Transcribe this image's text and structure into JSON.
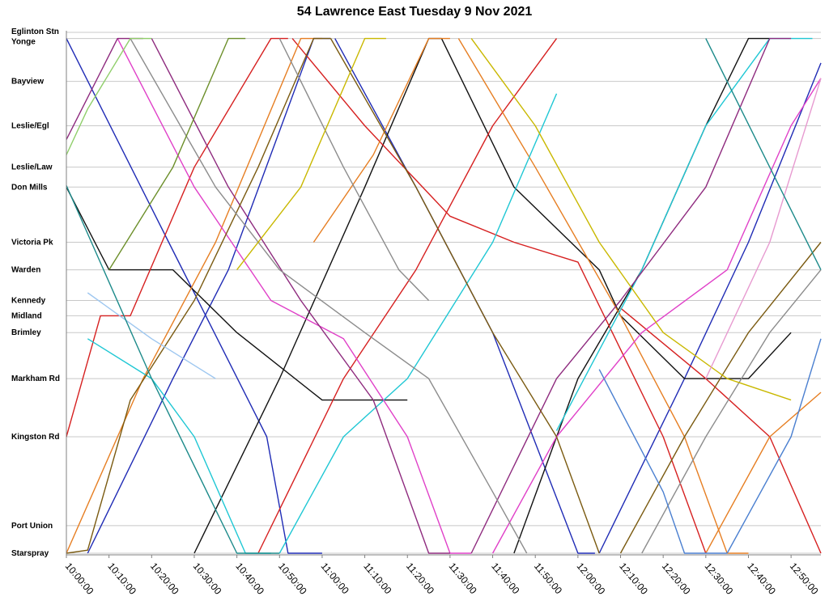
{
  "chart_data": {
    "type": "line",
    "title": "54 Lawrence East Tuesday 9 Nov 2021",
    "xlabel": "",
    "ylabel": "",
    "x_type": "time",
    "xlim": [
      "10:00:00",
      "12:57:00"
    ],
    "x_ticks": [
      "10:00:00",
      "10:10:00",
      "10:20:00",
      "10:30:00",
      "10:40:00",
      "10:50:00",
      "11:00:00",
      "11:10:00",
      "11:20:00",
      "11:30:00",
      "11:40:00",
      "11:50:00",
      "12:00:00",
      "12:10:00",
      "12:20:00",
      "12:30:00",
      "12:40:00",
      "12:50:00"
    ],
    "stops": [
      {
        "name": "Eglinton Stn",
        "position": 0
      },
      {
        "name": "Yonge",
        "position": 0.4
      },
      {
        "name": "Bayview",
        "position": 3.2
      },
      {
        "name": "Leslie/Egl",
        "position": 6.1
      },
      {
        "name": "Leslie/Law",
        "position": 8.8
      },
      {
        "name": "Don Mills",
        "position": 10.1
      },
      {
        "name": "Victoria Pk",
        "position": 13.7
      },
      {
        "name": "Warden",
        "position": 15.5
      },
      {
        "name": "Kennedy",
        "position": 17.5
      },
      {
        "name": "Midland",
        "position": 18.5
      },
      {
        "name": "Brimley",
        "position": 19.6
      },
      {
        "name": "Markham Rd",
        "position": 22.6
      },
      {
        "name": "Kingston Rd",
        "position": 26.4
      },
      {
        "name": "Port Union",
        "position": 32.2
      },
      {
        "name": "Starspray",
        "position": 34.0
      }
    ],
    "grid": true,
    "legend": "none",
    "series": [
      {
        "color": "#1f2bb5",
        "points": [
          [
            "10:00:00",
            0.4
          ],
          [
            "10:24:00",
            13.7
          ],
          [
            "10:47:00",
            26.4
          ],
          [
            "10:52:00",
            34.0
          ],
          [
            "11:00:00",
            34.0
          ]
        ]
      },
      {
        "color": "#1f2bb5",
        "points": [
          [
            "10:05:00",
            34.0
          ],
          [
            "10:25:00",
            22.6
          ],
          [
            "10:38:00",
            15.5
          ],
          [
            "10:58:00",
            0.4
          ],
          [
            "11:02:00",
            0.4
          ]
        ]
      },
      {
        "color": "#1f2bb5",
        "points": [
          [
            "11:03:00",
            0.4
          ],
          [
            "11:22:00",
            10.1
          ],
          [
            "11:40:00",
            19.6
          ],
          [
            "12:00:00",
            34.0
          ],
          [
            "12:04:00",
            34.0
          ]
        ]
      },
      {
        "color": "#1f2bb5",
        "points": [
          [
            "12:05:00",
            34.0
          ],
          [
            "12:25:00",
            22.6
          ],
          [
            "12:40:00",
            13.7
          ],
          [
            "12:57:00",
            2.0
          ]
        ]
      },
      {
        "color": "#111111",
        "points": [
          [
            "10:00:00",
            10.1
          ],
          [
            "10:10:00",
            15.5
          ],
          [
            "10:25:00",
            15.5
          ],
          [
            "10:40:00",
            19.6
          ],
          [
            "11:00:00",
            24.0
          ],
          [
            "11:20:00",
            24.0
          ]
        ]
      },
      {
        "color": "#111111",
        "points": [
          [
            "10:30:00",
            34.0
          ],
          [
            "10:50:00",
            22.6
          ],
          [
            "11:10:00",
            10.1
          ],
          [
            "11:25:00",
            0.4
          ],
          [
            "11:28:00",
            0.4
          ]
        ]
      },
      {
        "color": "#111111",
        "points": [
          [
            "11:45:00",
            34.0
          ],
          [
            "12:00:00",
            22.6
          ],
          [
            "12:15:00",
            15.5
          ],
          [
            "12:30:00",
            6.1
          ],
          [
            "12:40:00",
            0.4
          ],
          [
            "12:45:00",
            0.4
          ]
        ]
      },
      {
        "color": "#111111",
        "points": [
          [
            "11:28:00",
            0.4
          ],
          [
            "11:45:00",
            10.1
          ],
          [
            "12:05:00",
            15.5
          ],
          [
            "12:10:00",
            18.5
          ],
          [
            "12:25:00",
            22.6
          ],
          [
            "12:40:00",
            22.6
          ],
          [
            "12:50:00",
            19.6
          ]
        ]
      },
      {
        "color": "#d62020",
        "points": [
          [
            "10:00:00",
            26.4
          ],
          [
            "10:08:00",
            18.5
          ],
          [
            "10:15:00",
            18.5
          ],
          [
            "10:30:00",
            8.8
          ],
          [
            "10:48:00",
            0.4
          ],
          [
            "10:52:00",
            0.4
          ]
        ]
      },
      {
        "color": "#d62020",
        "points": [
          [
            "10:53:00",
            0.4
          ],
          [
            "11:10:00",
            6.1
          ],
          [
            "11:30:00",
            12.0
          ],
          [
            "11:45:00",
            13.7
          ],
          [
            "12:00:00",
            15.0
          ],
          [
            "12:20:00",
            26.4
          ],
          [
            "12:30:00",
            34.0
          ]
        ]
      },
      {
        "color": "#d62020",
        "points": [
          [
            "10:45:00",
            34.0
          ],
          [
            "11:05:00",
            22.6
          ],
          [
            "11:22:00",
            15.5
          ],
          [
            "11:40:00",
            6.1
          ],
          [
            "11:55:00",
            0.4
          ]
        ]
      },
      {
        "color": "#d62020",
        "points": [
          [
            "12:10:00",
            18.0
          ],
          [
            "12:30:00",
            22.6
          ],
          [
            "12:45:00",
            26.4
          ],
          [
            "12:57:00",
            34.0
          ]
        ]
      },
      {
        "color": "#e67e22",
        "points": [
          [
            "10:00:00",
            34.0
          ],
          [
            "10:18:00",
            22.6
          ],
          [
            "10:35:00",
            13.7
          ],
          [
            "10:55:00",
            0.4
          ],
          [
            "11:00:00",
            0.4
          ]
        ]
      },
      {
        "color": "#e67e22",
        "points": [
          [
            "10:58:00",
            13.7
          ],
          [
            "11:12:00",
            8.0
          ],
          [
            "11:25:00",
            0.4
          ],
          [
            "11:30:00",
            0.4
          ]
        ]
      },
      {
        "color": "#e67e22",
        "points": [
          [
            "11:32:00",
            0.4
          ],
          [
            "11:50:00",
            8.8
          ],
          [
            "12:10:00",
            18.5
          ],
          [
            "12:25:00",
            26.4
          ],
          [
            "12:35:00",
            34.0
          ],
          [
            "12:40:00",
            34.0
          ]
        ]
      },
      {
        "color": "#e67e22",
        "points": [
          [
            "12:30:00",
            34.0
          ],
          [
            "12:45:00",
            26.4
          ],
          [
            "12:57:00",
            23.5
          ]
        ]
      },
      {
        "color": "#1fc7d4",
        "points": [
          [
            "10:05:00",
            20.0
          ],
          [
            "10:20:00",
            22.6
          ],
          [
            "10:30:00",
            26.4
          ],
          [
            "10:42:00",
            34.0
          ],
          [
            "10:48:00",
            34.0
          ]
        ]
      },
      {
        "color": "#1fc7d4",
        "points": [
          [
            "10:50:00",
            34.0
          ],
          [
            "11:05:00",
            26.4
          ],
          [
            "11:20:00",
            22.6
          ],
          [
            "11:40:00",
            13.7
          ],
          [
            "11:55:00",
            4.0
          ]
        ]
      },
      {
        "color": "#1fc7d4",
        "points": [
          [
            "11:55:00",
            26.0
          ],
          [
            "12:15:00",
            15.5
          ],
          [
            "12:30:00",
            6.1
          ],
          [
            "12:45:00",
            0.4
          ],
          [
            "12:55:00",
            0.4
          ]
        ]
      },
      {
        "color": "#e040c8",
        "points": [
          [
            "10:12:00",
            0.4
          ],
          [
            "10:30:00",
            10.1
          ],
          [
            "10:48:00",
            17.5
          ],
          [
            "11:05:00",
            20.0
          ],
          [
            "11:20:00",
            26.4
          ],
          [
            "11:30:00",
            34.0
          ],
          [
            "11:35:00",
            34.0
          ]
        ]
      },
      {
        "color": "#e040c8",
        "points": [
          [
            "11:40:00",
            34.0
          ],
          [
            "11:55:00",
            26.4
          ],
          [
            "12:15:00",
            19.6
          ],
          [
            "12:35:00",
            15.5
          ],
          [
            "12:50:00",
            6.1
          ],
          [
            "12:57:00",
            3.0
          ]
        ]
      },
      {
        "color": "#8e2a7e",
        "points": [
          [
            "10:00:00",
            7.0
          ],
          [
            "10:12:00",
            0.4
          ],
          [
            "10:18:00",
            0.4
          ]
        ]
      },
      {
        "color": "#8e2a7e",
        "points": [
          [
            "10:20:00",
            0.4
          ],
          [
            "10:38:00",
            10.1
          ],
          [
            "10:55:00",
            17.5
          ],
          [
            "11:12:00",
            24.0
          ],
          [
            "11:25:00",
            34.0
          ],
          [
            "11:30:00",
            34.0
          ]
        ]
      },
      {
        "color": "#8e2a7e",
        "points": [
          [
            "11:35:00",
            34.0
          ],
          [
            "11:55:00",
            22.6
          ],
          [
            "12:10:00",
            17.5
          ],
          [
            "12:30:00",
            10.1
          ],
          [
            "12:45:00",
            0.4
          ],
          [
            "12:50:00",
            0.4
          ]
        ]
      },
      {
        "color": "#7a5a10",
        "points": [
          [
            "10:00:00",
            34.0
          ],
          [
            "10:05:00",
            33.8
          ],
          [
            "10:15:00",
            24.0
          ],
          [
            "10:30:00",
            17.5
          ],
          [
            "10:45:00",
            8.8
          ],
          [
            "10:58:00",
            0.4
          ],
          [
            "11:02:00",
            0.4
          ]
        ]
      },
      {
        "color": "#7a5a10",
        "points": [
          [
            "11:02:00",
            0.4
          ],
          [
            "11:22:00",
            10.1
          ],
          [
            "11:40:00",
            19.6
          ],
          [
            "11:55:00",
            26.4
          ],
          [
            "12:05:00",
            34.0
          ]
        ]
      },
      {
        "color": "#7a5a10",
        "points": [
          [
            "12:10:00",
            34.0
          ],
          [
            "12:25:00",
            26.4
          ],
          [
            "12:40:00",
            19.6
          ],
          [
            "12:57:00",
            13.7
          ]
        ]
      },
      {
        "color": "#8c8c8c",
        "points": [
          [
            "10:15:00",
            0.4
          ],
          [
            "10:35:00",
            10.1
          ],
          [
            "10:50:00",
            15.5
          ],
          [
            "11:10:00",
            19.6
          ],
          [
            "11:25:00",
            22.6
          ],
          [
            "11:40:00",
            30.0
          ],
          [
            "11:48:00",
            34.0
          ]
        ]
      },
      {
        "color": "#8c8c8c",
        "points": [
          [
            "10:50:00",
            0.4
          ],
          [
            "11:05:00",
            8.8
          ],
          [
            "11:18:00",
            15.5
          ],
          [
            "11:25:00",
            17.5
          ]
        ]
      },
      {
        "color": "#8c8c8c",
        "points": [
          [
            "12:15:00",
            34.0
          ],
          [
            "12:30:00",
            26.4
          ],
          [
            "12:45:00",
            19.6
          ],
          [
            "12:57:00",
            15.5
          ]
        ]
      },
      {
        "color": "#c9b800",
        "points": [
          [
            "10:40:00",
            15.5
          ],
          [
            "10:55:00",
            10.1
          ],
          [
            "11:10:00",
            0.4
          ],
          [
            "11:15:00",
            0.4
          ]
        ]
      },
      {
        "color": "#c9b800",
        "points": [
          [
            "11:35:00",
            0.4
          ],
          [
            "11:50:00",
            6.1
          ],
          [
            "12:05:00",
            13.7
          ],
          [
            "12:20:00",
            19.6
          ],
          [
            "12:35:00",
            22.6
          ],
          [
            "12:50:00",
            24.0
          ]
        ]
      },
      {
        "color": "#8fce6a",
        "points": [
          [
            "10:00:00",
            8.0
          ],
          [
            "10:05:00",
            5.0
          ],
          [
            "10:15:00",
            0.4
          ],
          [
            "10:20:00",
            0.4
          ]
        ]
      },
      {
        "color": "#6c8f2a",
        "points": [
          [
            "10:10:00",
            15.5
          ],
          [
            "10:25:00",
            8.8
          ],
          [
            "10:38:00",
            0.4
          ],
          [
            "10:42:00",
            0.4
          ]
        ]
      },
      {
        "color": "#4a7fd0",
        "points": [
          [
            "12:05:00",
            22.0
          ],
          [
            "12:20:00",
            30.0
          ],
          [
            "12:25:00",
            34.0
          ],
          [
            "12:35:00",
            34.0
          ]
        ]
      },
      {
        "color": "#4a7fd0",
        "points": [
          [
            "12:35:00",
            34.0
          ],
          [
            "12:50:00",
            26.4
          ],
          [
            "12:57:00",
            20.0
          ]
        ]
      },
      {
        "color": "#9ec7f0",
        "points": [
          [
            "10:05:00",
            17.0
          ],
          [
            "10:20:00",
            20.0
          ],
          [
            "10:35:00",
            22.6
          ]
        ]
      },
      {
        "color": "#e79ad0",
        "points": [
          [
            "12:30:00",
            22.6
          ],
          [
            "12:45:00",
            13.7
          ],
          [
            "12:57:00",
            3.0
          ]
        ]
      },
      {
        "color": "#1c8a8a",
        "points": [
          [
            "10:00:00",
            10.0
          ],
          [
            "10:20:00",
            22.6
          ],
          [
            "10:40:00",
            34.0
          ],
          [
            "10:50:00",
            34.0
          ]
        ]
      },
      {
        "color": "#1c8a8a",
        "points": [
          [
            "12:30:00",
            0.4
          ],
          [
            "12:45:00",
            8.8
          ],
          [
            "12:57:00",
            15.5
          ]
        ]
      }
    ]
  }
}
